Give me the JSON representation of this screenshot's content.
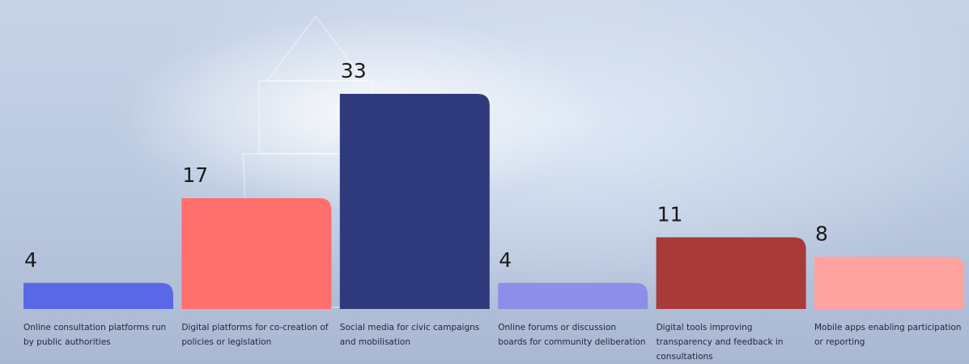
{
  "chart_data": {
    "type": "bar",
    "categories": [
      "Online consultation platforms run by public authorities",
      "Digital platforms for co-creation of policies or legislation",
      "Social media for civic campaigns and mobilisation",
      "Online forums or discussion boards for community deliberation",
      "Digital tools improving transparency and feedback in consultations",
      "Mobile apps enabling participation or reporting"
    ],
    "values": [
      4,
      17,
      33,
      4,
      11,
      8
    ],
    "colors": [
      "#5a68e8",
      "#ff6f6b",
      "#2f3a7c",
      "#8d8ee9",
      "#a83a3a",
      "#ffa3a0"
    ]
  }
}
